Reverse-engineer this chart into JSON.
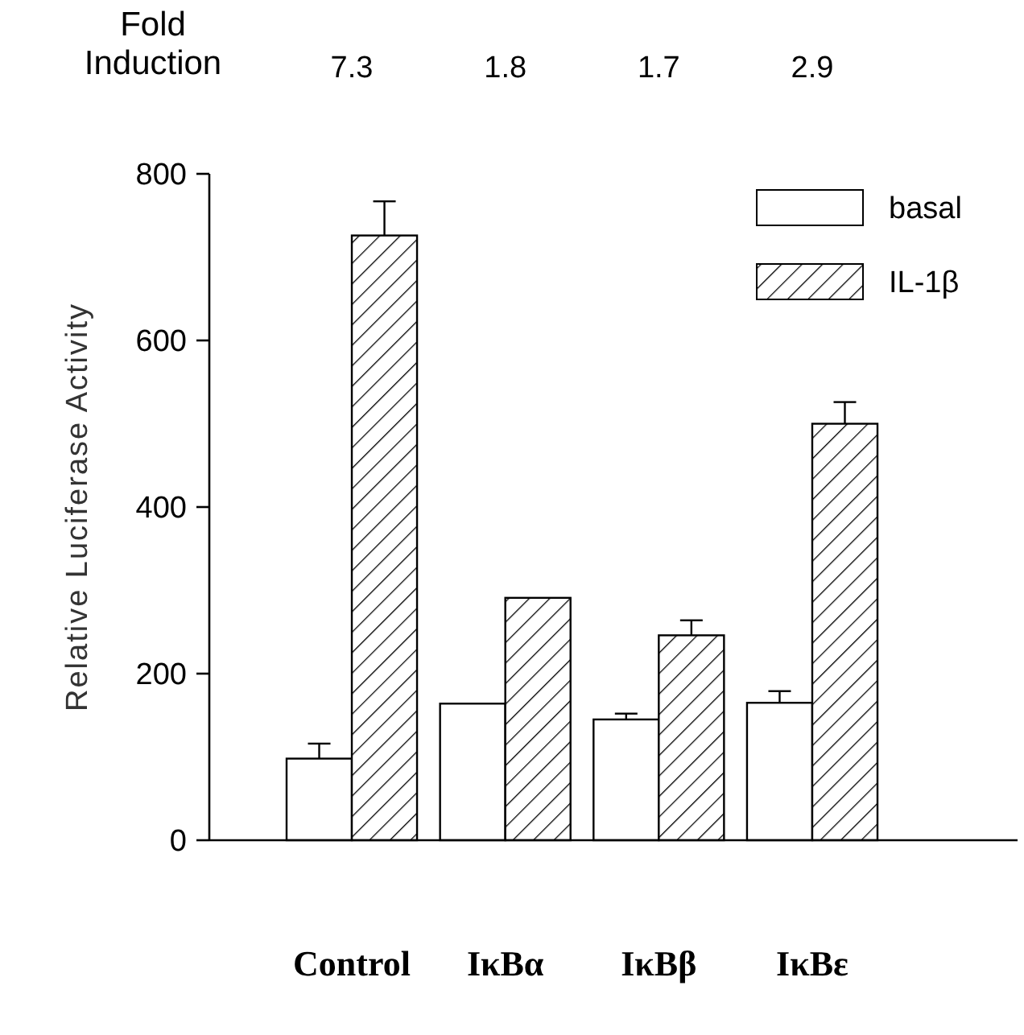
{
  "chart_data": {
    "type": "bar",
    "ylabel": "Relative Luciferase Activity",
    "categories": [
      "Control",
      "IκBα",
      "IκBβ",
      "IκBε"
    ],
    "series": [
      {
        "name": "basal",
        "color": "#ffffff",
        "values": [
          98,
          164,
          145,
          165
        ],
        "errors": [
          18,
          null,
          7,
          14
        ]
      },
      {
        "name": "IL-1β",
        "color": "#000000",
        "values": [
          726,
          291,
          246,
          500
        ],
        "errors": [
          41,
          null,
          18,
          26
        ]
      }
    ],
    "ylim": [
      0,
      800
    ],
    "yticks": [
      0,
      200,
      400,
      600,
      800
    ],
    "legend": "top right",
    "grid": false,
    "annotations": [
      "Fold\nInduction",
      "7.3",
      "1.8",
      "1.7",
      "2.9"
    ]
  }
}
